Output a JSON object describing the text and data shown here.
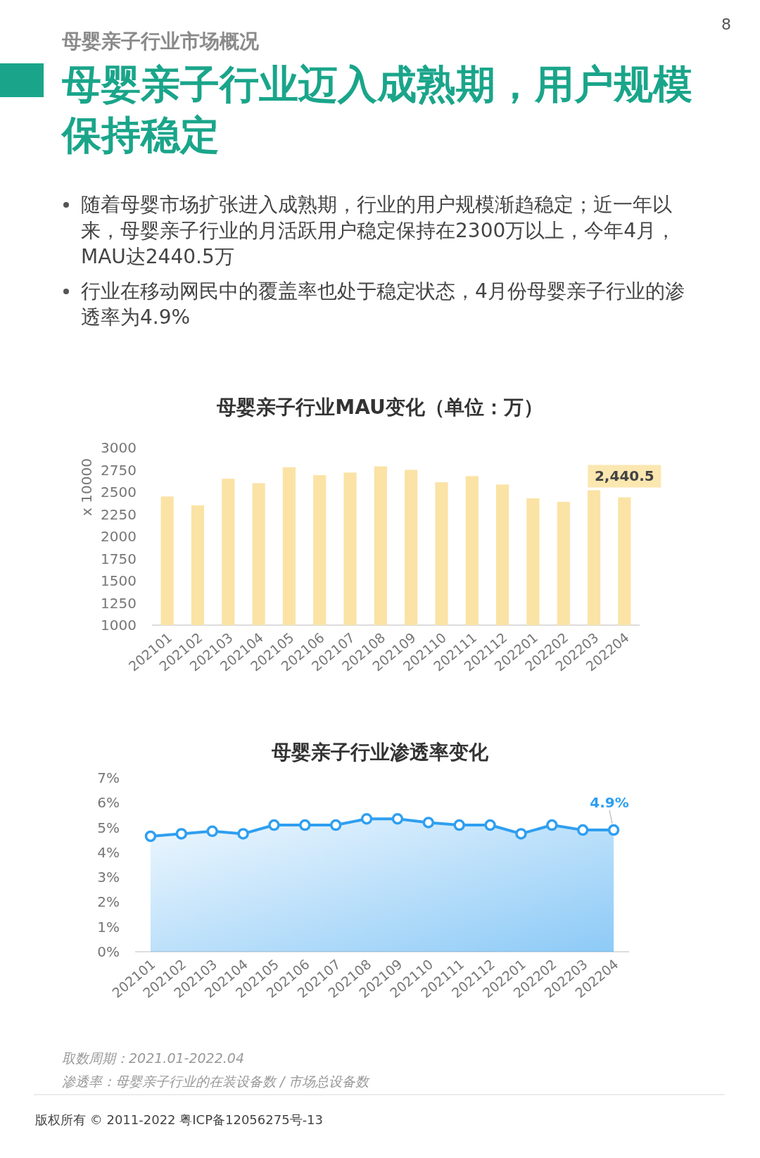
{
  "chart_data": [
    {
      "type": "other",
      "subtitle": "母婴亲子行业市场概况",
      "title": "母婴亲子行业迈入成熟期，用户规模保持稳定",
      "annotations": [
        "随着母婴市场扩张进入成熟期，行业的用户规模渐趋稳定；近一年以来，母婴亲子行业的月活跃用户稳定保持在2300万以上，今年4月，MAU达2440.5万",
        "行业在移动网民中的覆盖率也处于稳定状态，4月份母婴亲子行业的渗透率为4.9%",
        "8"
      ]
    },
    {
      "type": "bar",
      "title": "母婴亲子行业MAU变化（单位：万）",
      "ylabel": "x 10000",
      "categories": [
        "202101",
        "202102",
        "202103",
        "202104",
        "202105",
        "202106",
        "202107",
        "202108",
        "202109",
        "202110",
        "202111",
        "202112",
        "202201",
        "202202",
        "202203",
        "202204"
      ],
      "values": [
        2450,
        2350,
        2650,
        2600,
        2780,
        2690,
        2720,
        2790,
        2750,
        2610,
        2680,
        2585,
        2430,
        2390,
        2520,
        2440.5
      ],
      "value_labels": [
        null,
        null,
        null,
        null,
        null,
        null,
        null,
        null,
        null,
        null,
        null,
        null,
        null,
        null,
        null,
        "2,440.5"
      ],
      "color": "#fbe3a6",
      "ylim": [
        1000,
        3000
      ],
      "yticks": [
        1000,
        1250,
        1500,
        1750,
        2000,
        2250,
        2500,
        2750,
        3000
      ],
      "grid": false
    },
    {
      "type": "area",
      "title": "母婴亲子行业渗透率变化",
      "categories": [
        "202101",
        "202102",
        "202103",
        "202104",
        "202105",
        "202106",
        "202107",
        "202108",
        "202109",
        "202110",
        "202111",
        "202112",
        "202201",
        "202202",
        "202203",
        "202204"
      ],
      "values": [
        4.65,
        4.75,
        4.85,
        4.75,
        5.1,
        5.1,
        5.1,
        5.35,
        5.35,
        5.2,
        5.1,
        5.1,
        4.75,
        5.1,
        4.9,
        4.9
      ],
      "value_labels": [
        null,
        null,
        null,
        null,
        null,
        null,
        null,
        null,
        null,
        null,
        null,
        null,
        null,
        null,
        null,
        "4.9%"
      ],
      "color": "#2f9ff0",
      "marker": "circle",
      "line_style": "solid",
      "ylim": [
        0,
        7
      ],
      "yticks": [
        {
          "value": 0,
          "label": "0%"
        },
        {
          "value": 1,
          "label": "1%"
        },
        {
          "value": 2,
          "label": "2%"
        },
        {
          "value": 3,
          "label": "3%"
        },
        {
          "value": 4,
          "label": "4%"
        },
        {
          "value": 5,
          "label": "5%"
        },
        {
          "value": 6,
          "label": "6%"
        },
        {
          "value": 7,
          "label": "7%"
        }
      ],
      "grid": false,
      "annotations": [
        "取数周期：2021.01-2022.04",
        "渗透率：母婴亲子行业的在装设备数 / 市场总设备数",
        "版权所有 © 2011-2022 粤ICP备12056275号-13"
      ]
    }
  ]
}
